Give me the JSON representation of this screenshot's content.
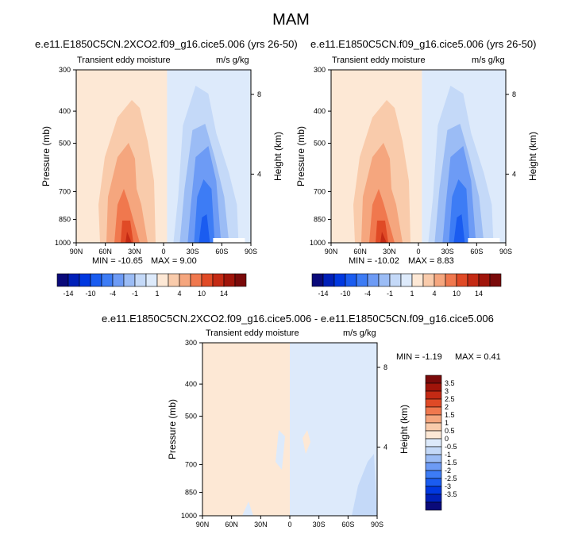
{
  "figure_title": "MAM",
  "palette": {
    "levels": [
      -14,
      -12,
      -10,
      -8,
      -6,
      -4,
      -2,
      -1,
      0,
      1,
      2,
      4,
      6,
      8,
      10,
      12,
      14
    ],
    "colors": [
      "#0a0a7a",
      "#0020b8",
      "#0038e0",
      "#1a5cf0",
      "#3d7cf5",
      "#6d9bf5",
      "#9bbcf5",
      "#c4d9f8",
      "#ddeafb",
      "#fde8d5",
      "#f9cbab",
      "#f5a67e",
      "#f0784e",
      "#e04a26",
      "#c42a14",
      "#a0140a",
      "#7a0a0a"
    ]
  },
  "diff_palette": {
    "colors": [
      "#0a0a7a",
      "#0020b8",
      "#0038e0",
      "#1a5cf0",
      "#3d7cf5",
      "#6d9bf5",
      "#9bbcf5",
      "#c4d9f8",
      "#ddeafb",
      "#fde8d5",
      "#f9cbab",
      "#f5a67e",
      "#f0784e",
      "#e04a26",
      "#c42a14",
      "#a0140a",
      "#7a0a0a"
    ],
    "labels": [
      "3.5",
      "3",
      "2.5",
      "2",
      "1.5",
      "1",
      "0.5",
      "0",
      "-0.5",
      "-1",
      "-1.5",
      "-2",
      "-2.5",
      "-3",
      "-3.5"
    ]
  },
  "panels": [
    {
      "title": "e.e11.E1850C5CN.2XCO2.f09_g16.cice5.006 (yrs 26-50)",
      "left_label": "Transient eddy moisture",
      "right_label": "m/s g/kg",
      "min_text": "MIN = -10.65",
      "max_text": "MAX =   9.00"
    },
    {
      "title": "e.e11.E1850C5CN.f09_g16.cice5.006 (yrs 26-50)",
      "left_label": "Transient eddy moisture",
      "right_label": "m/s g/kg",
      "min_text": "MIN = -10.02",
      "max_text": "MAX =   8.83"
    },
    {
      "title": "e.e11.E1850C5CN.2XCO2.f09_g16.cice5.006 - e.e11.E1850C5CN.f09_g16.cice5.006",
      "left_label": "Transient eddy moisture",
      "right_label": "m/s g/kg",
      "min_text": "MIN =  -1.19",
      "max_text": "MAX =   0.41"
    }
  ],
  "axes": {
    "ylabel": "Pressure (mb)",
    "y2label": "Height (km)",
    "pressure_ticks": [
      "300",
      "400",
      "500",
      "700",
      "850",
      "1000"
    ],
    "height_ticks": [
      "8",
      "4"
    ],
    "lat_ticks": [
      "90N",
      "60N",
      "30N",
      "0",
      "30S",
      "60S",
      "90S"
    ]
  },
  "colorbar_labels": [
    "-14",
    "-10",
    "-4",
    "-1",
    "1",
    "4",
    "10",
    "14"
  ],
  "chart_data": [
    {
      "type": "heatmap",
      "title": "e.e11.E1850C5CN.2XCO2.f09_g16.cice5.006 (yrs 26-50)",
      "xlabel": "",
      "ylabel": "Pressure (mb)",
      "y2label": "Height (km)",
      "x_ticks": [
        "90N",
        "60N",
        "30N",
        "0",
        "30S",
        "60S",
        "90S"
      ],
      "y_ticks": [
        300,
        400,
        500,
        700,
        850,
        1000
      ],
      "min": -10.65,
      "max": 9.0,
      "levels": [
        -14,
        -12,
        -10,
        -8,
        -6,
        -4,
        -2,
        -1,
        0,
        1,
        2,
        4,
        6,
        8,
        10,
        12,
        14
      ]
    },
    {
      "type": "heatmap",
      "title": "e.e11.E1850C5CN.f09_g16.cice5.006 (yrs 26-50)",
      "xlabel": "",
      "ylabel": "Pressure (mb)",
      "y2label": "Height (km)",
      "x_ticks": [
        "90N",
        "60N",
        "30N",
        "0",
        "30S",
        "60S",
        "90S"
      ],
      "y_ticks": [
        300,
        400,
        500,
        700,
        850,
        1000
      ],
      "min": -10.02,
      "max": 8.83,
      "levels": [
        -14,
        -12,
        -10,
        -8,
        -6,
        -4,
        -2,
        -1,
        0,
        1,
        2,
        4,
        6,
        8,
        10,
        12,
        14
      ]
    },
    {
      "type": "heatmap",
      "title": "e.e11.E1850C5CN.2XCO2.f09_g16.cice5.006 - e.e11.E1850C5CN.f09_g16.cice5.006",
      "xlabel": "",
      "ylabel": "Pressure (mb)",
      "y2label": "Height (km)",
      "x_ticks": [
        "90N",
        "60N",
        "30N",
        "0",
        "30S",
        "60S",
        "90S"
      ],
      "y_ticks": [
        300,
        400,
        500,
        700,
        850,
        1000
      ],
      "min": -1.19,
      "max": 0.41,
      "levels": [
        -3.5,
        -3,
        -2.5,
        -2,
        -1.5,
        -1,
        -0.5,
        0,
        0.5,
        1,
        1.5,
        2,
        2.5,
        3,
        3.5
      ]
    }
  ]
}
